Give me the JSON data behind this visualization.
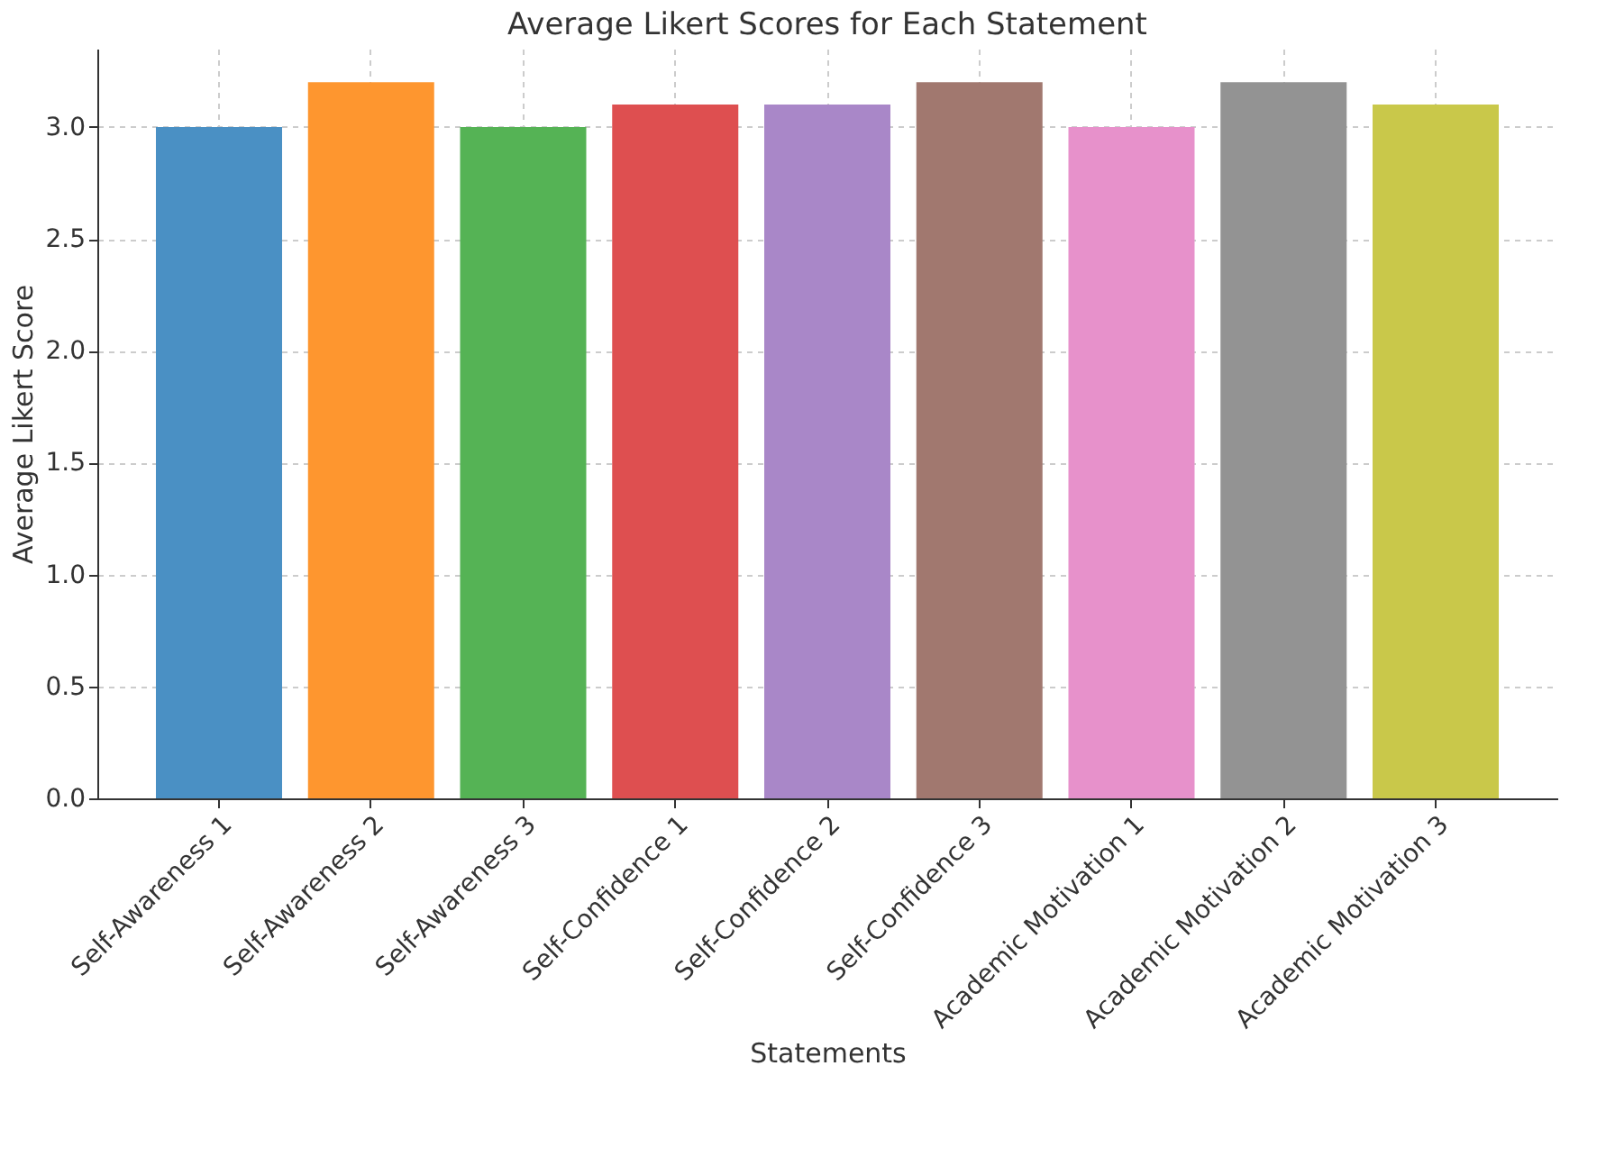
{
  "chart_data": {
    "type": "bar",
    "title": "Average Likert Scores for Each Statement",
    "xlabel": "Statements",
    "ylabel": "Average Likert Score",
    "categories": [
      "Self-Awareness 1",
      "Self-Awareness 2",
      "Self-Awareness 3",
      "Self-Confidence 1",
      "Self-Confidence 2",
      "Self-Confidence 3",
      "Academic Motivation 1",
      "Academic Motivation 2",
      "Academic Motivation 3"
    ],
    "values": [
      3.0,
      3.2,
      3.0,
      3.1,
      3.1,
      3.2,
      3.0,
      3.2,
      3.1
    ],
    "colors": [
      "#4a90c4",
      "#fe962f",
      "#55b355",
      "#de4f50",
      "#a987c8",
      "#a1786f",
      "#e791cb",
      "#939393",
      "#c9c84a"
    ],
    "ylim": [
      0,
      3.35
    ],
    "yticks": [
      {
        "value": 0,
        "label": "0.0"
      },
      {
        "value": 0.5,
        "label": "0.5"
      },
      {
        "value": 1,
        "label": "1.0"
      },
      {
        "value": 1.5,
        "label": "1.5"
      },
      {
        "value": 2,
        "label": "2.0"
      },
      {
        "value": 2.5,
        "label": "2.5"
      },
      {
        "value": 3,
        "label": "3.0"
      }
    ],
    "grid": true
  }
}
